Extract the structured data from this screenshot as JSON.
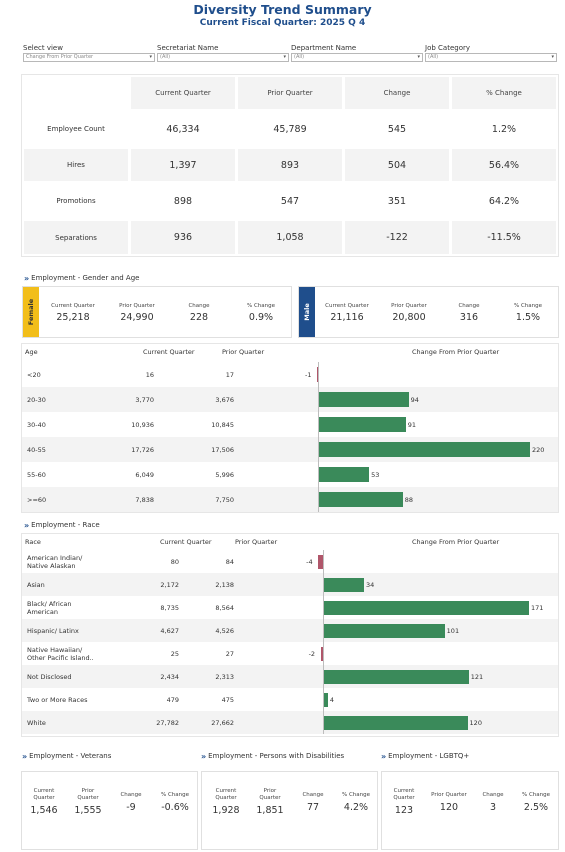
{
  "header": {
    "title": "Diversity Trend Summary",
    "subtitle": "Current Fiscal Quarter: 2025 Q 4"
  },
  "filters": [
    {
      "label": "Select view",
      "value": "Change From Prior Quarter"
    },
    {
      "label": "Secretariat Name",
      "value": "(All)"
    },
    {
      "label": "Department Name",
      "value": "(All)"
    },
    {
      "label": "Job Category",
      "value": "(All)"
    }
  ],
  "summary": {
    "columns": [
      "Current Quarter",
      "Prior Quarter",
      "Change",
      "% Change"
    ],
    "rows": [
      {
        "label": "Employee Count",
        "values": [
          "46,334",
          "45,789",
          "545",
          "1.2%"
        ]
      },
      {
        "label": "Hires",
        "values": [
          "1,397",
          "893",
          "504",
          "56.4%"
        ]
      },
      {
        "label": "Promotions",
        "values": [
          "898",
          "547",
          "351",
          "64.2%"
        ]
      },
      {
        "label": "Separations",
        "values": [
          "936",
          "1,058",
          "-122",
          "-11.5%"
        ]
      }
    ]
  },
  "gender": {
    "section_title": "Employment - Gender and Age",
    "columns": [
      "Current Quarter",
      "Prior Quarter",
      "Change",
      "% Change"
    ],
    "female": {
      "label": "Female",
      "values": [
        "25,218",
        "24,990",
        "228",
        "0.9%"
      ],
      "color": "#f2be1a"
    },
    "male": {
      "label": "Male",
      "values": [
        "21,116",
        "20,800",
        "316",
        "1.5%"
      ],
      "color": "#1f4e8c"
    }
  },
  "age": {
    "headers": {
      "label": "Age",
      "current": "Current Quarter",
      "prior": "Prior Quarter",
      "change": "Change From Prior Quarter"
    },
    "rows": [
      {
        "label": "<20",
        "current": "16",
        "prior": "17",
        "change": -1
      },
      {
        "label": "20-30",
        "current": "3,770",
        "prior": "3,676",
        "change": 94
      },
      {
        "label": "30-40",
        "current": "10,936",
        "prior": "10,845",
        "change": 91
      },
      {
        "label": "40-55",
        "current": "17,726",
        "prior": "17,506",
        "change": 220
      },
      {
        "label": "55-60",
        "current": "6,049",
        "prior": "5,996",
        "change": 53
      },
      {
        "label": ">=60",
        "current": "7,838",
        "prior": "7,750",
        "change": 88
      }
    ]
  },
  "race": {
    "section_title": "Employment - Race",
    "headers": {
      "label": "Race",
      "current": "Current Quarter",
      "prior": "Prior Quarter",
      "change": "Change From Prior Quarter"
    },
    "rows": [
      {
        "label": "American Indian/\nNative Alaskan",
        "current": "80",
        "prior": "84",
        "change": -4
      },
      {
        "label": "Asian",
        "current": "2,172",
        "prior": "2,138",
        "change": 34
      },
      {
        "label": "Black/ African\nAmerican",
        "current": "8,735",
        "prior": "8,564",
        "change": 171
      },
      {
        "label": "Hispanic/ Latinx",
        "current": "4,627",
        "prior": "4,526",
        "change": 101
      },
      {
        "label": "Native Hawaiian/\nOther Pacific Island..",
        "current": "25",
        "prior": "27",
        "change": -2
      },
      {
        "label": "Not Disclosed",
        "current": "2,434",
        "prior": "2,313",
        "change": 121
      },
      {
        "label": "Two or More Races",
        "current": "479",
        "prior": "475",
        "change": 4
      },
      {
        "label": "White",
        "current": "27,782",
        "prior": "27,662",
        "change": 120
      }
    ]
  },
  "panels": [
    {
      "title": "Employment - Veterans",
      "columns": [
        "Current\nQuarter",
        "Prior\nQuarter",
        "Change",
        "% Change"
      ],
      "values": [
        "1,546",
        "1,555",
        "-9",
        "-0.6%"
      ]
    },
    {
      "title": "Employment - Persons with Disabilities",
      "columns": [
        "Current\nQuarter",
        "Prior\nQuarter",
        "Change",
        "% Change"
      ],
      "values": [
        "1,928",
        "1,851",
        "77",
        "4.2%"
      ]
    },
    {
      "title": "Employment - LGBTQ+",
      "columns": [
        "Current\nQuarter",
        "Prior Quarter",
        "Change",
        "% Change"
      ],
      "values": [
        "123",
        "120",
        "3",
        "2.5%"
      ]
    }
  ],
  "colors": {
    "positive_bar": "#3a8a5a",
    "negative_bar": "#b0566a",
    "accent": "#1f4e8c"
  },
  "icons": {
    "section": "double-chevron-right-icon",
    "dropdown": "caret-down-icon"
  }
}
